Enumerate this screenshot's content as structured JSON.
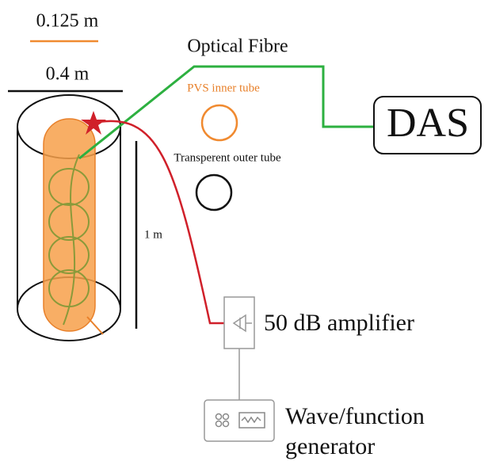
{
  "scale_bars": [
    {
      "label": "0.125 m"
    },
    {
      "label": "0.4 m"
    },
    {
      "label": "1 m"
    }
  ],
  "labels": {
    "optical_fibre": "Optical Fibre",
    "inner_tube": "PVS inner tube",
    "outer_tube": "Transperent outer tube"
  },
  "nodes": [
    {
      "label": "DAS"
    },
    {
      "label": "50 dB amplifier"
    },
    {
      "label_lines": [
        "Wave/function",
        "generator"
      ]
    }
  ]
}
